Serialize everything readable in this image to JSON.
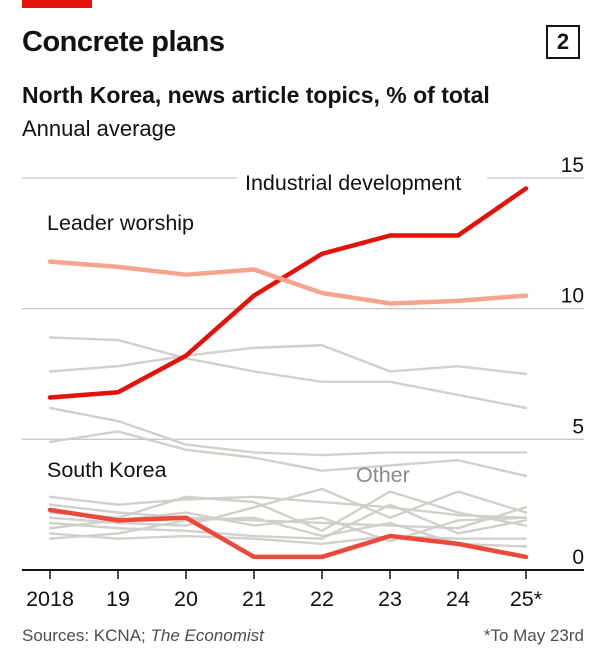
{
  "header": {
    "title": "Concrete plans",
    "badge": "2",
    "subtitle": "North Korea, news article topics, % of total",
    "subsubtitle": "Annual average"
  },
  "footer": {
    "sources_prefix": "Sources: KCNA; ",
    "sources_italic": "The Economist",
    "note": "*To May 23rd"
  },
  "colors": {
    "brand_red": "#e3120b",
    "industrial": "#e3120b",
    "leader": "#f5a58d",
    "south_korea": "#ea4a3a",
    "other": "#cfcdc8",
    "grid": "#c8c8c8"
  },
  "chart_data": {
    "type": "line",
    "x": [
      "2018",
      "19",
      "20",
      "21",
      "22",
      "23",
      "24",
      "25*"
    ],
    "ylim": [
      0,
      15
    ],
    "yticks": [
      "0",
      "5",
      "10",
      "15"
    ],
    "grid": true,
    "series": [
      {
        "name": "Industrial development",
        "color": "#e3120b",
        "highlight": true,
        "values": [
          6.6,
          6.8,
          8.2,
          10.5,
          12.1,
          12.8,
          12.8,
          14.6
        ]
      },
      {
        "name": "Leader worship",
        "color": "#f5a58d",
        "highlight": true,
        "values": [
          11.8,
          11.6,
          11.3,
          11.5,
          10.6,
          10.2,
          10.3,
          10.5
        ]
      },
      {
        "name": "South Korea",
        "color": "#ea4a3a",
        "highlight": true,
        "values": [
          2.3,
          1.9,
          2.0,
          0.5,
          0.5,
          1.3,
          1.0,
          0.5
        ]
      },
      {
        "name": "Other",
        "color": "#cfcdc8",
        "highlight": false,
        "values": [
          8.9,
          8.8,
          8.1,
          7.6,
          7.2,
          7.2,
          6.7,
          6.2
        ]
      },
      {
        "name": "",
        "color": "#cfcdc8",
        "values": [
          7.6,
          7.8,
          8.2,
          8.5,
          8.6,
          7.6,
          7.8,
          7.5
        ]
      },
      {
        "name": "",
        "color": "#cfcdc8",
        "values": [
          6.2,
          5.7,
          4.8,
          4.5,
          4.4,
          4.5,
          4.5,
          4.5
        ]
      },
      {
        "name": "",
        "color": "#cfcdc8",
        "values": [
          4.9,
          5.3,
          4.6,
          4.3,
          3.8,
          4.0,
          4.2,
          3.6
        ]
      },
      {
        "name": "",
        "color": "#cfcdc8",
        "values": [
          2.8,
          2.5,
          2.7,
          2.8,
          2.6,
          2.4,
          2.1,
          2.0
        ]
      },
      {
        "name": "",
        "color": "#cfcdc8",
        "values": [
          2.5,
          2.2,
          2.0,
          1.9,
          1.8,
          1.7,
          1.6,
          2.4
        ]
      },
      {
        "name": "",
        "color": "#cfcdc8",
        "values": [
          2.2,
          2.0,
          2.8,
          2.6,
          1.5,
          3.0,
          2.2,
          1.7
        ]
      },
      {
        "name": "",
        "color": "#cfcdc8",
        "values": [
          2.0,
          1.8,
          1.7,
          2.4,
          3.1,
          2.0,
          3.0,
          2.2
        ]
      },
      {
        "name": "",
        "color": "#cfcdc8",
        "values": [
          1.8,
          1.6,
          1.5,
          1.3,
          1.2,
          2.5,
          1.4,
          1.9
        ]
      },
      {
        "name": "",
        "color": "#cfcdc8",
        "values": [
          1.6,
          1.9,
          2.2,
          1.7,
          2.0,
          1.1,
          1.9,
          2.0
        ]
      },
      {
        "name": "",
        "color": "#cfcdc8",
        "values": [
          1.4,
          1.2,
          1.3,
          1.2,
          1.0,
          1.3,
          1.2,
          1.2
        ]
      },
      {
        "name": "",
        "color": "#cfcdc8",
        "values": [
          1.2,
          1.4,
          1.9,
          2.0,
          1.3,
          1.8,
          1.0,
          0.9
        ]
      }
    ]
  }
}
